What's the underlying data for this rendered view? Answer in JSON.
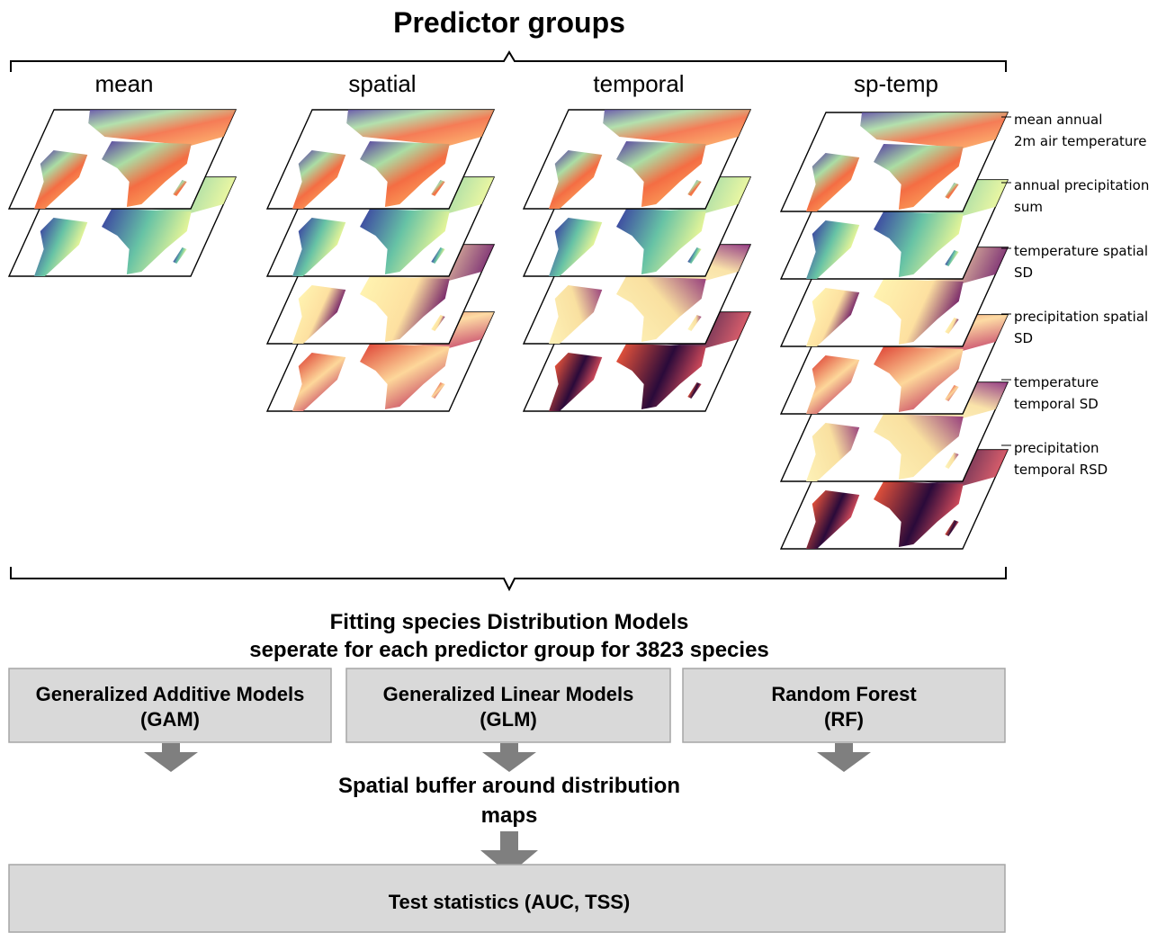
{
  "header": {
    "title": "Predictor groups"
  },
  "groups": [
    "mean",
    "spatial",
    "temporal",
    "sp-temp"
  ],
  "layer_labels": [
    [
      "mean annual",
      "2m air temperature"
    ],
    [
      "annual precipitation",
      "sum"
    ],
    [
      "temperature spatial",
      "SD"
    ],
    [
      "precipitation spatial",
      "SD"
    ],
    [
      "temperature",
      "temporal SD"
    ],
    [
      "precipitation",
      "temporal RSD"
    ]
  ],
  "fitting": [
    "Fitting species Distribution Models",
    "seperate for each predictor group for 3823 species"
  ],
  "models": [
    {
      "name": "Generalized Additive Models",
      "abbr": "(GAM)"
    },
    {
      "name": "Generalized Linear Models",
      "abbr": "(GLM)"
    },
    {
      "name": "Random Forest",
      "abbr": "(RF)"
    }
  ],
  "buffer": [
    "Spatial buffer around distribution",
    "maps"
  ],
  "test": "Test statistics (AUC, TSS)"
}
